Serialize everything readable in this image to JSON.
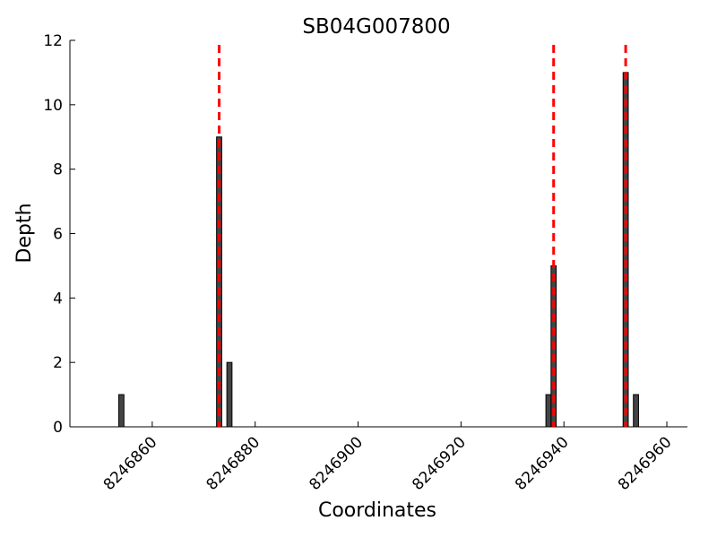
{
  "chart_data": {
    "type": "bar",
    "title": "SB04G007800",
    "xlabel": "Coordinates",
    "ylabel": "Depth",
    "x": [
      8246854,
      8246873,
      8246875,
      8246937,
      8246938,
      8246952,
      8246954
    ],
    "values": [
      1,
      9,
      2,
      1,
      5,
      11,
      1
    ],
    "color": "#444444",
    "vlines": [
      8246873,
      8246938,
      8246952
    ],
    "vline_color": "#ff0000",
    "xlim": [
      8246844,
      8246964
    ],
    "xticks": [
      8246860,
      8246880,
      8246900,
      8246920,
      8246940,
      8246960
    ],
    "ylim": [
      0,
      12
    ],
    "yticks": [
      0,
      2,
      4,
      6,
      8,
      10,
      12
    ]
  }
}
